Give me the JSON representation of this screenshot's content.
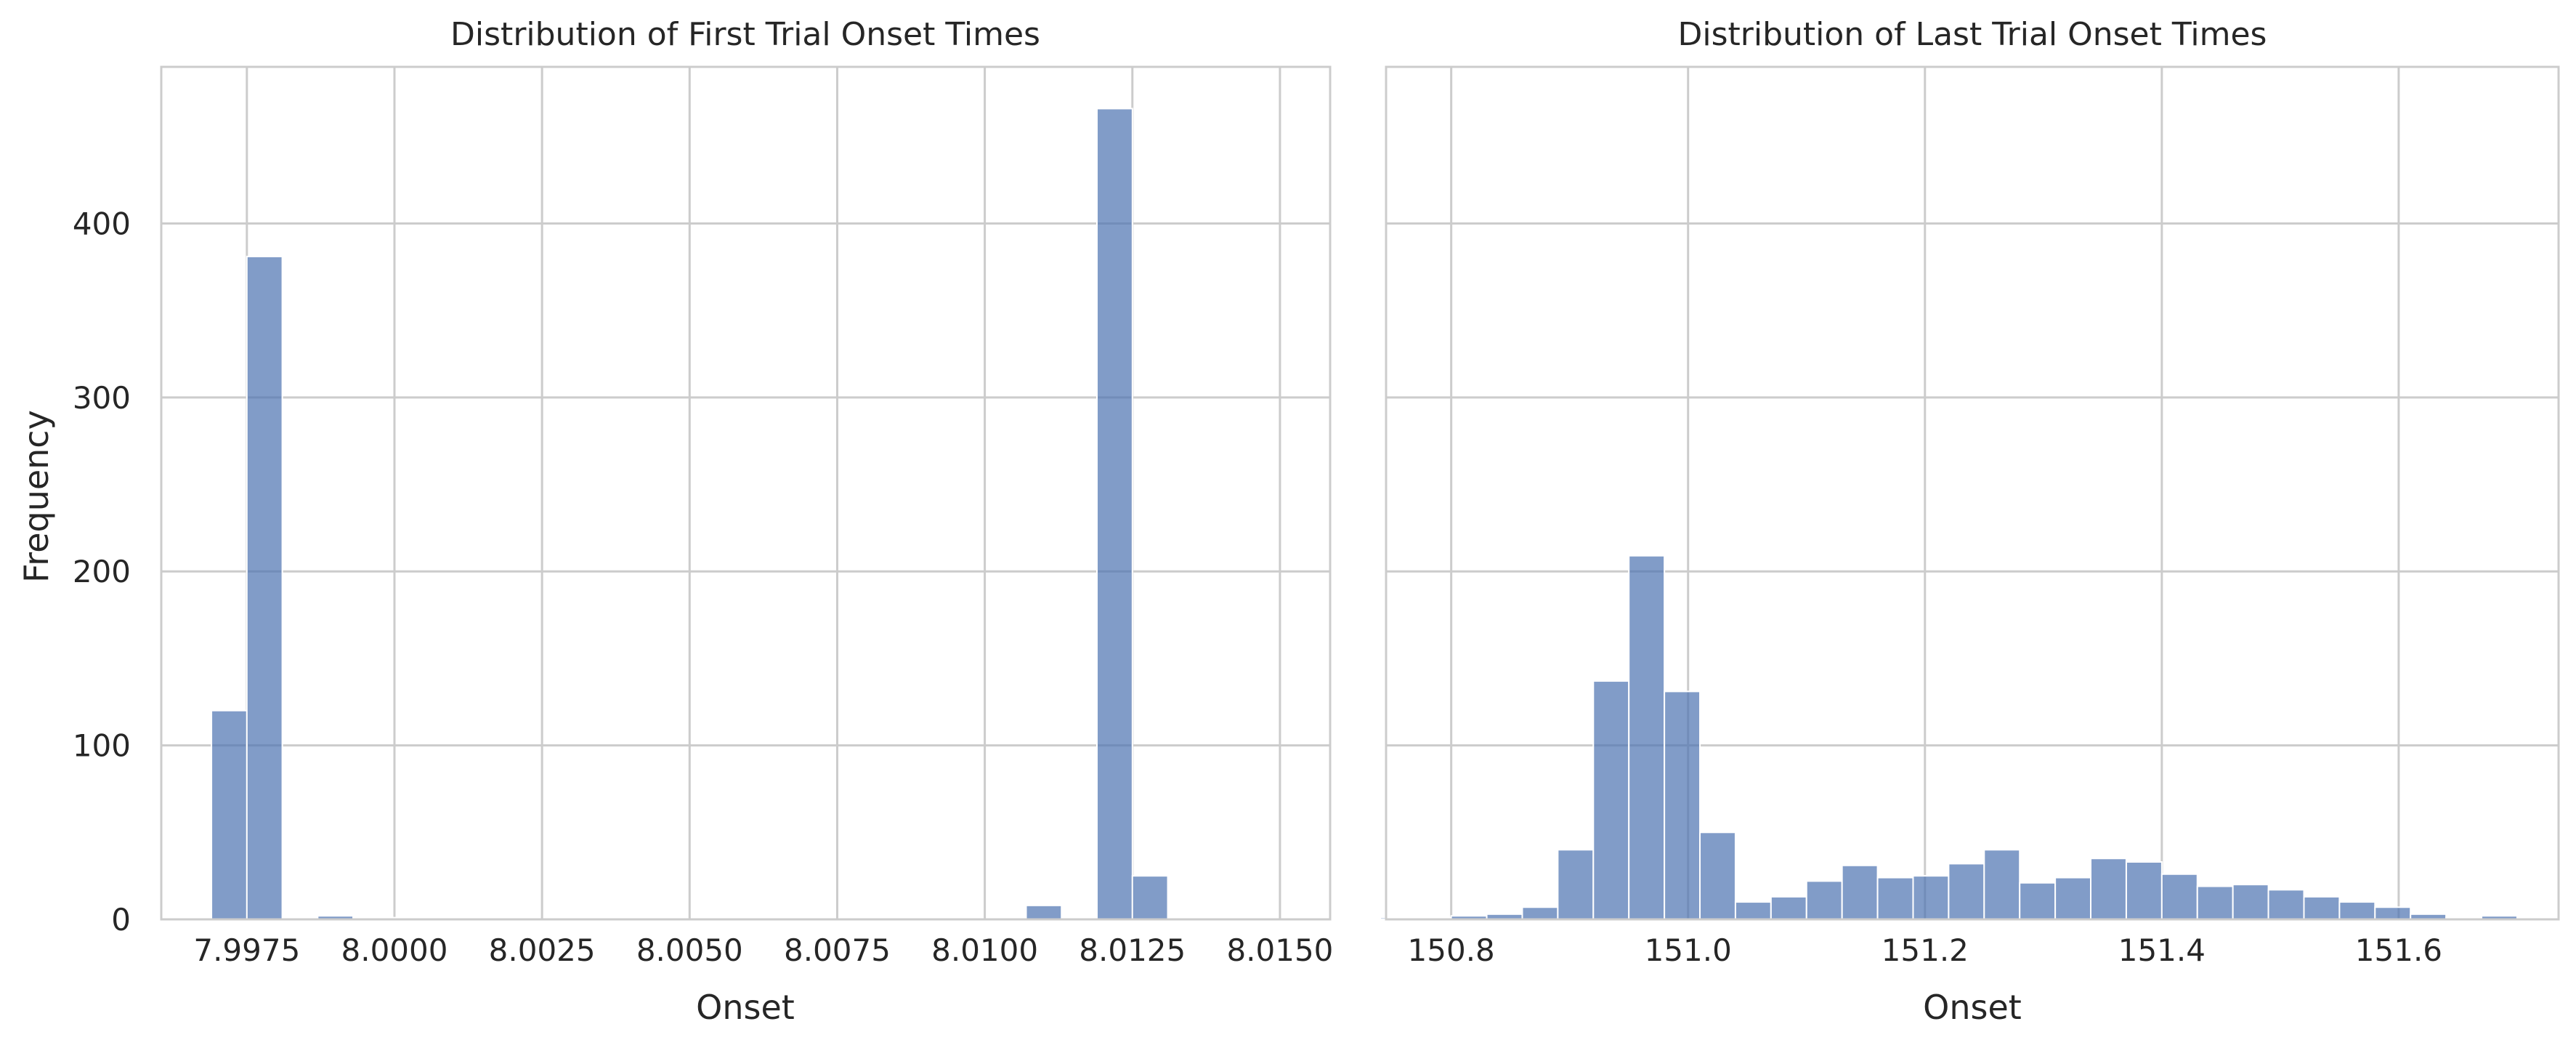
{
  "figure": {
    "ylabel": "Frequency",
    "bar_color": "#4c72b0",
    "grid_color": "#cccccc",
    "spine_color": "#cccccc",
    "background": "#ffffff"
  },
  "chart_data": [
    {
      "type": "bar",
      "title": "Distribution of First Trial Onset Times",
      "xlabel": "Onset",
      "ylabel": "Frequency",
      "grid": true,
      "xlim": [
        7.99605,
        8.01585
      ],
      "ylim": [
        0,
        490
      ],
      "xticks": [
        7.9975,
        8.0,
        8.0025,
        8.005,
        8.0075,
        8.01,
        8.0125,
        8.015
      ],
      "xtick_labels": [
        "7.9975",
        "8.0000",
        "8.0025",
        "8.0050",
        "8.0075",
        "8.0100",
        "8.0125",
        "8.0150"
      ],
      "yticks": [
        0,
        100,
        200,
        300,
        400
      ],
      "ytick_labels": [
        "0",
        "100",
        "200",
        "300",
        "400"
      ],
      "bin_start": 7.9969,
      "bin_width": 0.0006,
      "values": [
        120,
        381,
        0,
        2,
        1,
        1,
        0,
        0,
        0,
        0,
        0,
        0,
        0,
        0,
        0,
        0,
        0,
        0,
        0,
        0,
        0,
        0,
        0,
        8,
        0,
        466,
        25,
        0,
        0,
        0,
        0,
        0,
        0,
        1
      ]
    },
    {
      "type": "bar",
      "title": "Distribution of Last Trial Onset Times",
      "xlabel": "Onset",
      "ylabel": "",
      "grid": true,
      "xlim": [
        150.745,
        151.735
      ],
      "ylim": [
        0,
        490
      ],
      "xticks": [
        150.8,
        151.0,
        151.2,
        151.4,
        151.6
      ],
      "xtick_labels": [
        "150.8",
        "151.0",
        "151.2",
        "151.4",
        "151.6"
      ],
      "yticks": [
        0,
        100,
        200,
        300,
        400
      ],
      "ytick_labels": [
        "0",
        "100",
        "200",
        "300",
        "400"
      ],
      "bin_start": 150.77,
      "bin_width": 0.03,
      "values": [
        1,
        2,
        3,
        7,
        40,
        137,
        209,
        131,
        50,
        10,
        13,
        22,
        31,
        24,
        25,
        32,
        40,
        21,
        24,
        35,
        33,
        26,
        19,
        20,
        17,
        13,
        10,
        7,
        3,
        1,
        2
      ]
    }
  ]
}
